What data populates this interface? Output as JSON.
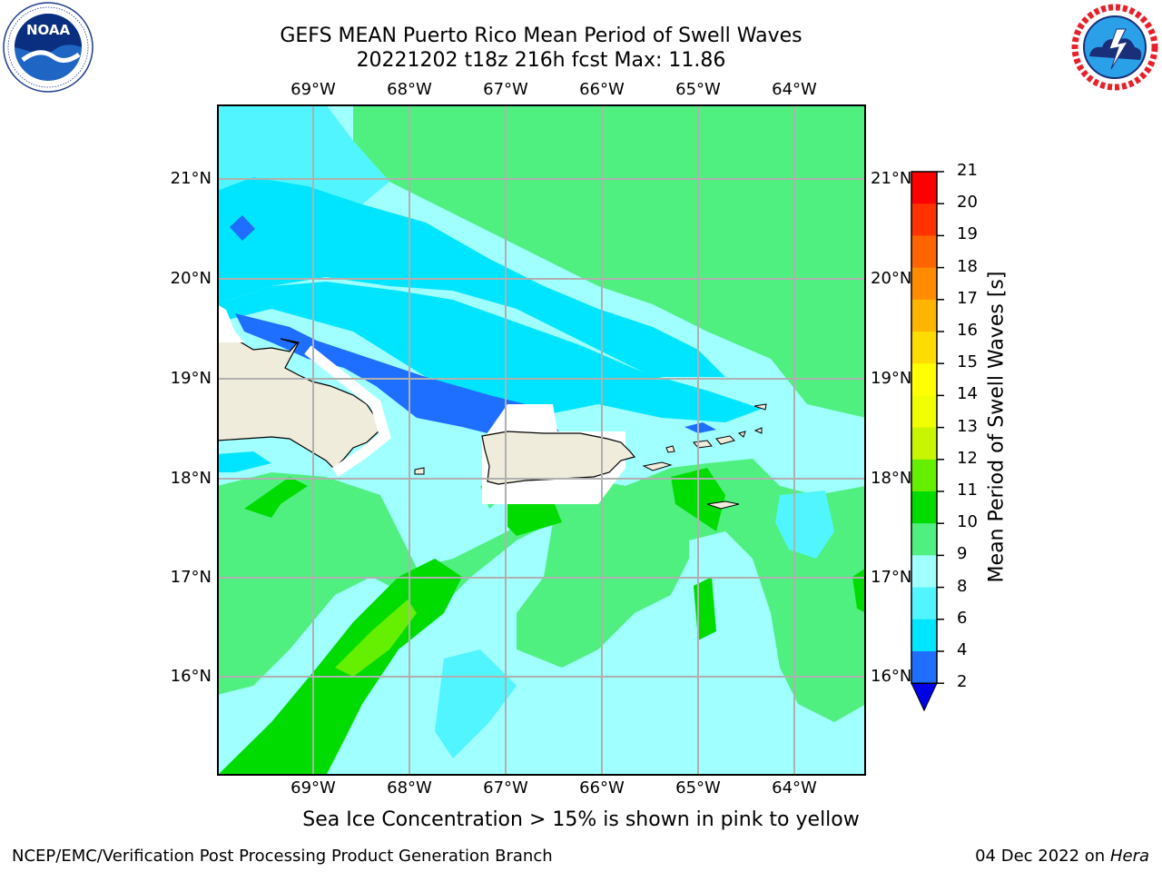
{
  "title": {
    "line1": "GEFS MEAN Puerto Rico Mean Period of Swell Waves",
    "line2": "20221202 t18z 216h fcst   Max: 11.86"
  },
  "logos": {
    "left": {
      "icon": "noaa-logo-icon",
      "text": "NOAA",
      "ring_text": "NATIONAL OCEANIC AND ATMOSPHERIC ADMINISTRATION · U.S. DEPARTMENT OF COMMERCE"
    },
    "right": {
      "icon": "nws-logo-icon",
      "ring_text": "NATIONAL WEATHER SERVICE"
    }
  },
  "map": {
    "lon_labels": [
      "69°W",
      "68°W",
      "67°W",
      "66°W",
      "65°W",
      "64°W"
    ],
    "lat_labels": [
      "21°N",
      "20°N",
      "19°N",
      "18°N",
      "17°N",
      "16°N"
    ],
    "land_color": "#efecdc",
    "grid_color": "#b0b0b0"
  },
  "colorbar": {
    "title": "Mean Period of Swell Waves [s]",
    "ticks": [
      "21",
      "20",
      "19",
      "18",
      "17",
      "16",
      "15",
      "14",
      "13",
      "12",
      "11",
      "10",
      "9",
      "8",
      "6",
      "4",
      "2"
    ],
    "colors": [
      "#0000e6",
      "#1e6eff",
      "#00e5ff",
      "#50f5ff",
      "#a0ffff",
      "#50f080",
      "#00dc00",
      "#64f000",
      "#c8f500",
      "#f0ff00",
      "#ffff00",
      "#ffdc00",
      "#ffb400",
      "#ff8c00",
      "#ff6400",
      "#ff3200",
      "#ff0000"
    ]
  },
  "note": "Sea Ice Concentration > 15% is shown in pink to yellow",
  "footer": {
    "left": "NCEP/EMC/Verification Post Processing Product Generation Branch",
    "date": "04 Dec 2022 on",
    "machine": "Hera"
  }
}
